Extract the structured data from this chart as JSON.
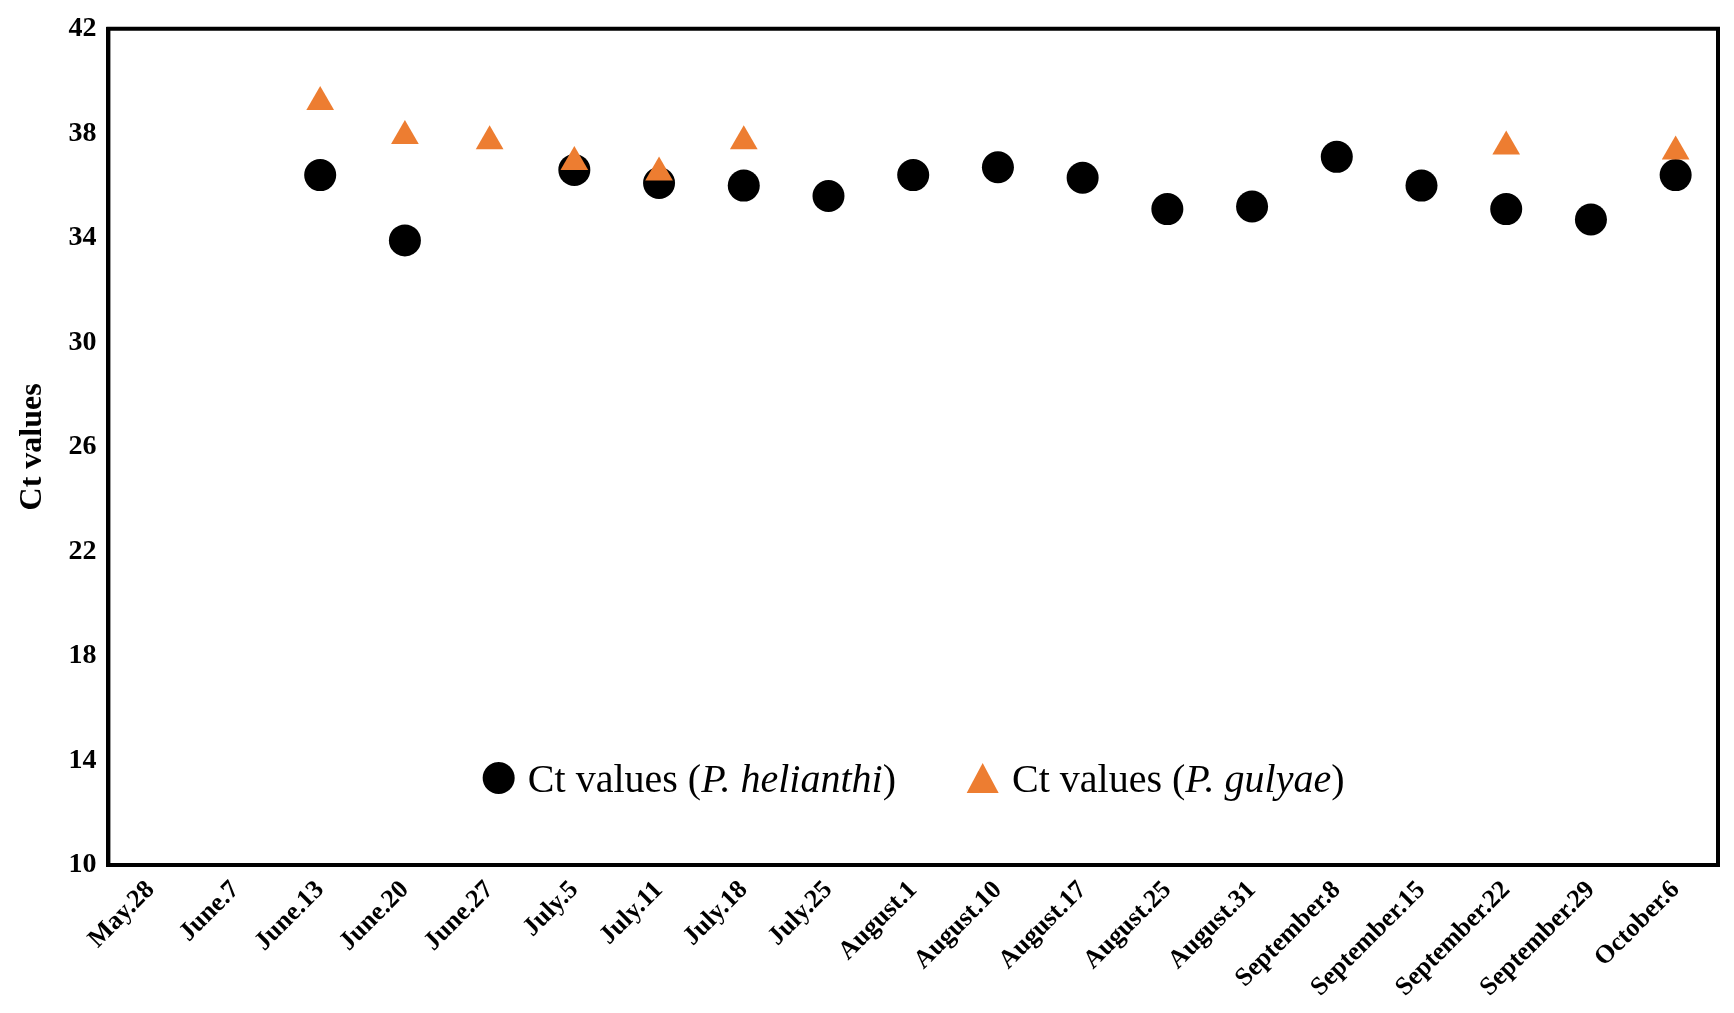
{
  "chart_data": {
    "type": "scatter",
    "ylabel": "Ct values",
    "categories": [
      "May.28",
      "June.7",
      "June.13",
      "June.20",
      "June.27",
      "July.5",
      "July.11",
      "July.18",
      "July.25",
      "August.1",
      "August.10",
      "August.17",
      "August.25",
      "August.31",
      "September.8",
      "September.15",
      "September.22",
      "September.29",
      "October.6"
    ],
    "series": [
      {
        "name": "Ct values (P. helianthi)",
        "color": "#000000",
        "marker": "circle",
        "values": [
          null,
          null,
          36.4,
          33.9,
          null,
          36.6,
          36.1,
          36.0,
          35.6,
          36.4,
          36.7,
          36.3,
          35.1,
          35.2,
          37.1,
          36.0,
          35.1,
          34.7,
          36.4
        ]
      },
      {
        "name": "Ct values (P. gulyae)",
        "color": "#ed7d31",
        "marker": "triangle",
        "values": [
          null,
          null,
          39.2,
          37.9,
          37.7,
          36.9,
          36.5,
          37.7,
          null,
          null,
          null,
          null,
          null,
          null,
          null,
          null,
          37.5,
          null,
          37.3
        ]
      }
    ],
    "ylim": [
      10,
      42
    ],
    "yticks": [
      10,
      14,
      18,
      22,
      26,
      30,
      34,
      38,
      42
    ],
    "grid": false,
    "legend": "bottom"
  }
}
